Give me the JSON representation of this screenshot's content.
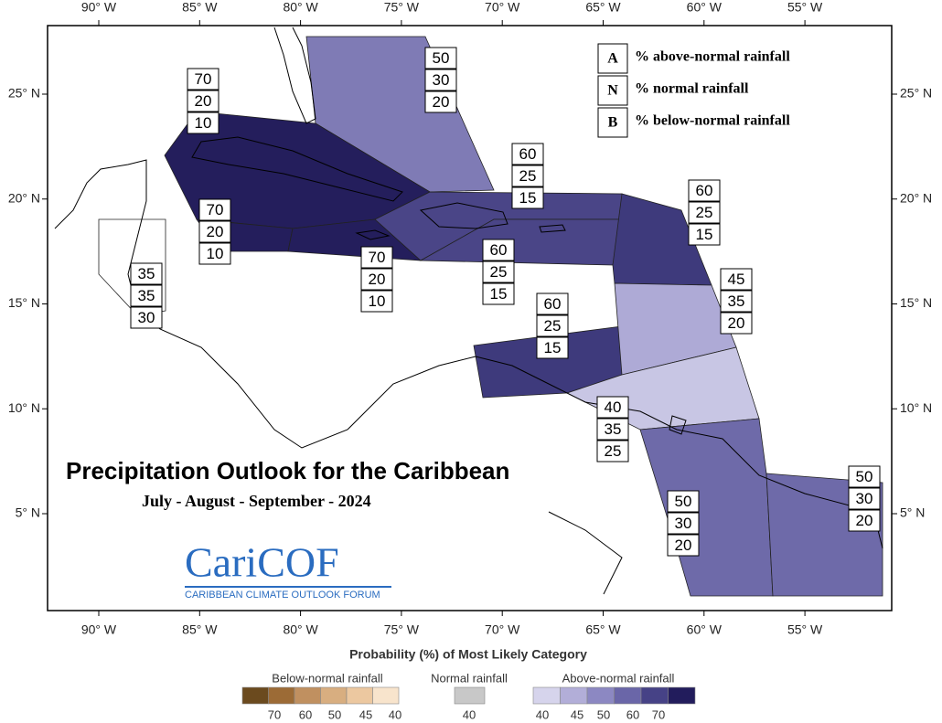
{
  "title": "Precipitation Outlook for the Caribbean",
  "subtitle": "July - August - September - 2024",
  "logo": {
    "name": "CariCOF",
    "tagline": "CARIBBEAN CLIMATE OUTLOOK FORUM"
  },
  "longitude_labels": [
    "90° W",
    "85° W",
    "80° W",
    "75° W",
    "70° W",
    "65° W",
    "60° W",
    "55° W"
  ],
  "latitude_labels": [
    "25° N",
    "20° N",
    "15° N",
    "10° N",
    "5° N"
  ],
  "key": [
    {
      "letter": "A",
      "text": "% above-normal rainfall"
    },
    {
      "letter": "N",
      "text": "% normal rainfall"
    },
    {
      "letter": "B",
      "text": "% below-normal rainfall"
    }
  ],
  "regions": [
    {
      "color": "#7f7bb5",
      "values": [
        50,
        30,
        20
      ]
    },
    {
      "color": "#241e5c",
      "values": [
        70,
        20,
        10
      ]
    },
    {
      "color": "#241e5c",
      "values": [
        70,
        20,
        10
      ]
    },
    {
      "color": "#241e5c",
      "values": [
        70,
        20,
        10
      ]
    },
    {
      "color": "#4a4587",
      "values": [
        60,
        25,
        15
      ]
    },
    {
      "color": "#4a4587",
      "values": [
        60,
        25,
        15
      ]
    },
    {
      "color": "#3e3a7c",
      "values": [
        60,
        25,
        15
      ]
    },
    {
      "color": "#3e3a7c",
      "values": [
        60,
        25,
        15
      ]
    },
    {
      "color": "#aeaad6",
      "values": [
        45,
        35,
        20
      ]
    },
    {
      "color": "#c8c6e4",
      "values": [
        40,
        35,
        25
      ]
    },
    {
      "color": "#6e6aa9",
      "values": [
        50,
        30,
        20
      ]
    },
    {
      "color": "#6e6aa9",
      "values": [
        50,
        30,
        20
      ]
    },
    {
      "color": "#ffffff",
      "values": [
        35,
        35,
        30
      ]
    }
  ],
  "colorbar": {
    "title": "Probability (%) of Most Likely Category",
    "groups": [
      {
        "label": "Below-normal rainfall",
        "ticks": [
          70,
          60,
          50,
          45,
          40
        ],
        "colors": [
          "#6b4a1e",
          "#9c6b36",
          "#c09060",
          "#d8ae80",
          "#ecc8a0",
          "#f8e4cc"
        ]
      },
      {
        "label": "Normal rainfall",
        "ticks": [
          40
        ],
        "colors": [
          "#c8c8c8"
        ]
      },
      {
        "label": "Above-normal rainfall",
        "ticks": [
          40,
          45,
          50,
          60,
          70
        ],
        "colors": [
          "#d6d4ec",
          "#b2aed8",
          "#8c88c2",
          "#6a66a8",
          "#464286",
          "#221c5c"
        ]
      }
    ]
  }
}
